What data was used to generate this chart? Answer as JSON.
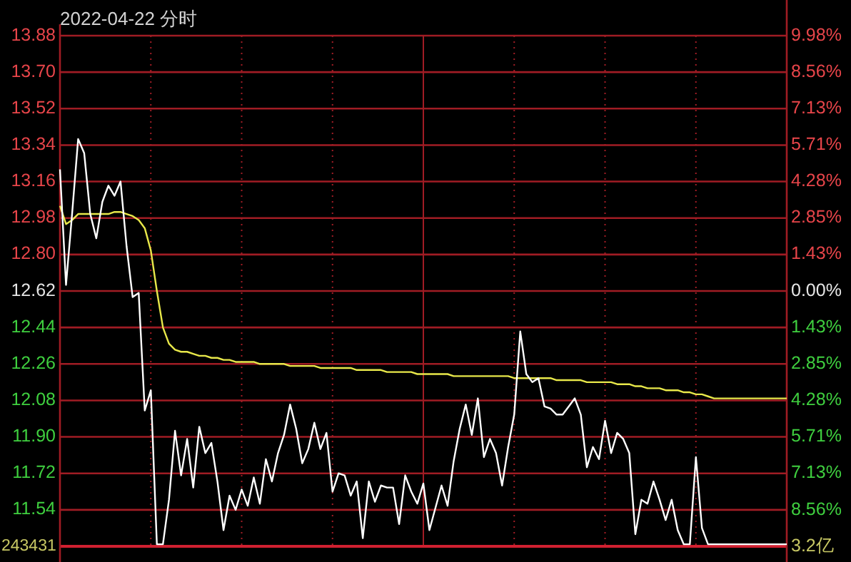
{
  "chart_data": {
    "type": "line",
    "title": "2022-04-22 分时",
    "categories": [
      null,
      null,
      null,
      null,
      null,
      null,
      null,
      null,
      null,
      null,
      null,
      null,
      null,
      null,
      null,
      null,
      null,
      null,
      null,
      null,
      null,
      null,
      null,
      null,
      null,
      null,
      null,
      null,
      null,
      null,
      null,
      null,
      null,
      null,
      null,
      null,
      null,
      null,
      null,
      null,
      null,
      null,
      null,
      null,
      null,
      null,
      null,
      null,
      null,
      null,
      null,
      null,
      null,
      null,
      null,
      null,
      null,
      null,
      null,
      null,
      null,
      null,
      null,
      null,
      null,
      null,
      null,
      null,
      null,
      null,
      null,
      null,
      null,
      null,
      null,
      null,
      null,
      null,
      null,
      null,
      null,
      null,
      null,
      null,
      null,
      null,
      null,
      null,
      null,
      null,
      null,
      null,
      null,
      null,
      null,
      null,
      null,
      null,
      null,
      null,
      null,
      null,
      null,
      null,
      null,
      null,
      null,
      null,
      null,
      null,
      null,
      null,
      null,
      null,
      null,
      null,
      null,
      null,
      null,
      null,
      null
    ],
    "ylim": [
      11.36,
      13.88
    ],
    "yticks": [
      {
        "value": 11.54,
        "label": "11.54"
      },
      {
        "value": 11.72,
        "label": "11.72"
      },
      {
        "value": 11.9,
        "label": "11.90"
      },
      {
        "value": 12.08,
        "label": "12.08"
      },
      {
        "value": 12.26,
        "label": "12.26"
      },
      {
        "value": 12.44,
        "label": "12.44"
      },
      {
        "value": 12.62,
        "label": "12.62"
      },
      {
        "value": 12.8,
        "label": "12.80"
      },
      {
        "value": 12.98,
        "label": "12.98"
      },
      {
        "value": 13.16,
        "label": "13.16"
      },
      {
        "value": 13.34,
        "label": "13.34"
      },
      {
        "value": 13.52,
        "label": "13.52"
      },
      {
        "value": 13.7,
        "label": "13.70"
      },
      {
        "value": 13.88,
        "label": "13.88"
      }
    ],
    "annotations": [
      "243431",
      "3.2亿"
    ],
    "y2lim": [
      -9.98,
      9.98
    ],
    "y2ticks": [
      {
        "value": -8.56,
        "label": "8.56%"
      },
      {
        "value": -7.13,
        "label": "7.13%"
      },
      {
        "value": -5.71,
        "label": "5.71%"
      },
      {
        "value": -4.28,
        "label": "4.28%"
      },
      {
        "value": -2.85,
        "label": "2.85%"
      },
      {
        "value": -1.43,
        "label": "1.43%"
      },
      {
        "value": 0,
        "label": "0.00%"
      },
      {
        "value": 1.43,
        "label": "1.43%"
      },
      {
        "value": 2.85,
        "label": "2.85%"
      },
      {
        "value": 4.28,
        "label": "4.28%"
      },
      {
        "value": 5.71,
        "label": "5.71%"
      },
      {
        "value": 7.13,
        "label": "7.13%"
      },
      {
        "value": 8.56,
        "label": "8.56%"
      },
      {
        "value": 9.98,
        "label": "9.98%"
      }
    ],
    "tick_labels": "y",
    "grid": true,
    "series": [
      {
        "color": "#ffffff",
        "values": [
          13.22,
          12.65,
          13.0,
          13.37,
          13.3,
          13.0,
          12.88,
          13.06,
          13.14,
          13.09,
          13.16,
          12.84,
          12.59,
          12.61,
          12.03,
          12.13,
          11.37,
          11.37,
          11.59,
          11.93,
          11.71,
          11.89,
          11.65,
          11.95,
          11.82,
          11.87,
          11.68,
          11.44,
          11.61,
          11.54,
          11.64,
          11.56,
          11.7,
          11.57,
          11.79,
          11.68,
          11.82,
          11.91,
          12.06,
          11.94,
          11.77,
          11.84,
          11.97,
          11.84,
          11.92,
          11.63,
          11.72,
          11.71,
          11.61,
          11.68,
          11.4,
          11.68,
          11.58,
          11.66,
          11.65,
          11.65,
          11.47,
          11.71,
          11.63,
          11.57,
          11.67,
          11.44,
          11.55,
          11.66,
          11.56,
          11.78,
          11.94,
          12.06,
          11.91,
          12.09,
          11.8,
          11.89,
          11.82,
          11.66,
          11.85,
          12.01,
          12.42,
          12.21,
          12.17,
          12.19,
          12.05,
          12.04,
          12.01,
          12.01,
          12.05,
          12.09,
          12.01,
          11.75,
          11.85,
          11.79,
          11.98,
          11.82,
          11.92,
          11.89,
          11.82,
          11.42,
          11.59,
          11.57,
          11.68,
          11.59,
          11.49,
          11.59,
          11.44,
          11.37,
          11.37,
          11.8,
          11.45,
          11.37,
          11.37,
          11.37,
          11.37,
          11.37,
          11.37,
          11.37,
          11.37,
          11.37,
          11.37,
          11.37,
          11.37,
          11.37,
          11.37
        ]
      },
      {
        "color": "#e8e84a",
        "values": [
          13.04,
          12.95,
          12.97,
          13.0,
          13.0,
          13.0,
          13.0,
          13.0,
          13.0,
          13.01,
          13.01,
          13.0,
          12.99,
          12.97,
          12.93,
          12.82,
          12.62,
          12.44,
          12.36,
          12.33,
          12.32,
          12.32,
          12.31,
          12.3,
          12.3,
          12.29,
          12.29,
          12.28,
          12.28,
          12.27,
          12.27,
          12.27,
          12.27,
          12.26,
          12.26,
          12.26,
          12.26,
          12.26,
          12.25,
          12.25,
          12.25,
          12.25,
          12.25,
          12.24,
          12.24,
          12.24,
          12.24,
          12.24,
          12.24,
          12.23,
          12.23,
          12.23,
          12.23,
          12.23,
          12.22,
          12.22,
          12.22,
          12.22,
          12.22,
          12.21,
          12.21,
          12.21,
          12.21,
          12.21,
          12.21,
          12.2,
          12.2,
          12.2,
          12.2,
          12.2,
          12.2,
          12.2,
          12.2,
          12.2,
          12.2,
          12.19,
          12.19,
          12.19,
          12.19,
          12.19,
          12.19,
          12.19,
          12.18,
          12.18,
          12.18,
          12.18,
          12.18,
          12.17,
          12.17,
          12.17,
          12.17,
          12.17,
          12.16,
          12.16,
          12.16,
          12.15,
          12.15,
          12.14,
          12.14,
          12.14,
          12.13,
          12.13,
          12.13,
          12.12,
          12.12,
          12.11,
          12.11,
          12.1,
          12.09,
          12.09,
          12.09,
          12.09,
          12.09,
          12.09,
          12.09,
          12.09,
          12.09,
          12.09,
          12.09,
          12.09,
          12.09
        ]
      }
    ]
  }
}
